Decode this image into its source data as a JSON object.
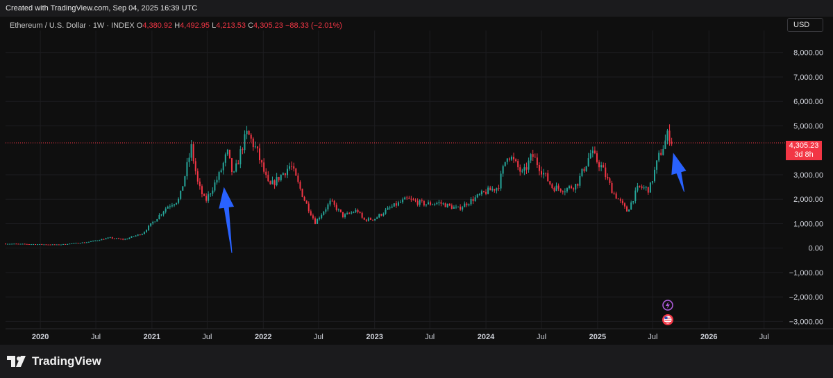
{
  "header": {
    "created_text": "Created with TradingView.com, Sep 04, 2025 16:39 UTC"
  },
  "legend": {
    "symbol": "Ethereum / U.S. Dollar · 1W · INDEX",
    "o_label": "O",
    "o_value": "4,380.92",
    "h_label": "H",
    "h_value": "4,492.95",
    "l_label": "L",
    "l_value": "4,213.53",
    "c_label": "C",
    "c_value": "4,305.23",
    "change": "−88.33 (−2.01%)"
  },
  "currency_button": "USD",
  "price_tag": {
    "price": "4,305.23",
    "countdown": "3d 8h"
  },
  "footer": {
    "logo_text": "TradingView"
  },
  "colors": {
    "up": "#26a69a",
    "down": "#f23645",
    "background": "#0f0f0f",
    "arrow": "#2962ff",
    "last_price": "#f23645"
  },
  "icons": [
    "lightning-event-icon",
    "us-flag-event-icon"
  ],
  "chart_data": {
    "type": "candlestick",
    "title": "",
    "interval": "1W",
    "ylim": [
      -3300,
      8900
    ],
    "y_ticks": [
      8000,
      7000,
      6000,
      5000,
      3000,
      2000,
      1000,
      0,
      -1000,
      -2000,
      -3000
    ],
    "y_tick_labels": [
      "8,000.00",
      "7,000.00",
      "6,000.00",
      "5,000.00",
      "3,000.00",
      "2,000.00",
      "1,000.00",
      "0.00",
      "−1,000.00",
      "−2,000.00",
      "−3,000.00"
    ],
    "x_range": [
      "2019-09-09",
      "2026-09-01"
    ],
    "x_ticks": [
      {
        "date": "2020-01-01",
        "label": "2020",
        "major": true
      },
      {
        "date": "2020-07-01",
        "label": "Jul",
        "major": false
      },
      {
        "date": "2021-01-01",
        "label": "2021",
        "major": true
      },
      {
        "date": "2021-07-01",
        "label": "Jul",
        "major": false
      },
      {
        "date": "2022-01-01",
        "label": "2022",
        "major": true
      },
      {
        "date": "2022-07-01",
        "label": "Jul",
        "major": false
      },
      {
        "date": "2023-01-01",
        "label": "2023",
        "major": true
      },
      {
        "date": "2023-07-01",
        "label": "Jul",
        "major": false
      },
      {
        "date": "2024-01-01",
        "label": "2024",
        "major": true
      },
      {
        "date": "2024-07-01",
        "label": "Jul",
        "major": false
      },
      {
        "date": "2025-01-01",
        "label": "2025",
        "major": true
      },
      {
        "date": "2025-07-01",
        "label": "Jul",
        "major": false
      },
      {
        "date": "2026-01-01",
        "label": "2026",
        "major": true
      },
      {
        "date": "2026-07-01",
        "label": "Jul",
        "major": false
      }
    ],
    "last_price": 4305.23,
    "close_path": [
      [
        "2019-09-09",
        180
      ],
      [
        "2020-03-01",
        140
      ],
      [
        "2020-06-01",
        240
      ],
      [
        "2020-08-15",
        420
      ],
      [
        "2020-10-01",
        350
      ],
      [
        "2020-12-01",
        600
      ],
      [
        "2021-01-15",
        1200
      ],
      [
        "2021-02-20",
        1700
      ],
      [
        "2021-04-01",
        2000
      ],
      [
        "2021-05-10",
        4100
      ],
      [
        "2021-06-01",
        2600
      ],
      [
        "2021-06-25",
        1900
      ],
      [
        "2021-08-10",
        3000
      ],
      [
        "2021-09-05",
        3900
      ],
      [
        "2021-09-25",
        2900
      ],
      [
        "2021-10-25",
        4200
      ],
      [
        "2021-11-10",
        4700
      ],
      [
        "2021-12-10",
        4000
      ],
      [
        "2022-01-20",
        2500
      ],
      [
        "2022-02-15",
        2800
      ],
      [
        "2022-04-01",
        3400
      ],
      [
        "2022-05-15",
        2000
      ],
      [
        "2022-06-20",
        1050
      ],
      [
        "2022-08-10",
        1900
      ],
      [
        "2022-09-20",
        1300
      ],
      [
        "2022-11-05",
        1550
      ],
      [
        "2022-11-25",
        1150
      ],
      [
        "2023-01-01",
        1200
      ],
      [
        "2023-02-15",
        1600
      ],
      [
        "2023-04-15",
        2000
      ],
      [
        "2023-06-15",
        1800
      ],
      [
        "2023-08-01",
        1850
      ],
      [
        "2023-10-01",
        1600
      ],
      [
        "2023-11-20",
        2000
      ],
      [
        "2024-01-01",
        2300
      ],
      [
        "2024-02-10",
        2500
      ],
      [
        "2024-03-12",
        3900
      ],
      [
        "2024-05-01",
        3000
      ],
      [
        "2024-06-01",
        3800
      ],
      [
        "2024-08-05",
        2500
      ],
      [
        "2024-09-15",
        2400
      ],
      [
        "2024-10-25",
        2600
      ],
      [
        "2024-12-10",
        3900
      ],
      [
        "2025-01-15",
        3300
      ],
      [
        "2025-02-20",
        2300
      ],
      [
        "2025-04-08",
        1500
      ],
      [
        "2025-05-15",
        2500
      ],
      [
        "2025-06-20",
        2400
      ],
      [
        "2025-07-20",
        3700
      ],
      [
        "2025-08-22",
        4700
      ],
      [
        "2025-09-04",
        4305
      ]
    ],
    "annotations": [
      {
        "type": "arrow",
        "color": "#2962ff",
        "from": [
          "2021-09-20",
          -200
        ],
        "to": [
          "2021-08-25",
          2500
        ]
      },
      {
        "type": "arrow",
        "color": "#2962ff",
        "from": [
          "2025-10-12",
          2300
        ],
        "to": [
          "2025-09-06",
          3900
        ]
      }
    ]
  }
}
